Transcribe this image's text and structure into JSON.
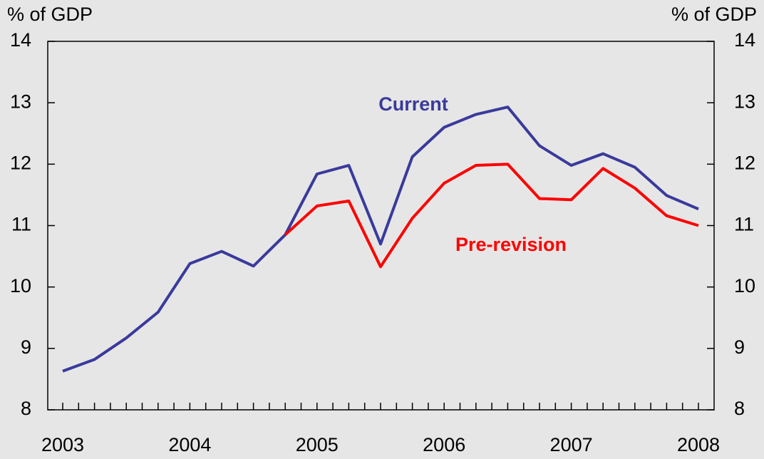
{
  "chart_data": {
    "type": "line",
    "y_label": "% of GDP",
    "y2_label": "% of GDP",
    "categories": [
      "2003",
      null,
      null,
      null,
      "2004",
      null,
      null,
      null,
      "2005",
      null,
      null,
      null,
      "2006",
      null,
      null,
      null,
      "2007",
      null,
      null,
      null,
      "2008"
    ],
    "series": [
      {
        "name": "Current",
        "color": "#3a3a9c",
        "values": [
          8.63,
          8.82,
          9.17,
          9.59,
          10.38,
          10.58,
          10.34,
          10.85,
          11.84,
          11.98,
          10.7,
          12.12,
          12.6,
          12.81,
          12.93,
          12.3,
          11.98,
          12.17,
          11.95,
          11.49,
          11.27
        ]
      },
      {
        "name": "Pre-revision",
        "color": "#ff0000",
        "values": [
          null,
          null,
          null,
          null,
          null,
          null,
          null,
          10.85,
          11.32,
          11.4,
          10.33,
          11.12,
          11.69,
          11.98,
          12.0,
          11.44,
          11.42,
          11.93,
          11.61,
          11.16,
          11.0
        ]
      }
    ],
    "ylim": [
      8,
      14
    ],
    "yticks": [
      8,
      9,
      10,
      11,
      12,
      13,
      14
    ],
    "y2lim": [
      8,
      14
    ],
    "y2ticks": [
      8,
      9,
      10,
      11,
      12,
      13,
      14
    ],
    "grid": false
  }
}
